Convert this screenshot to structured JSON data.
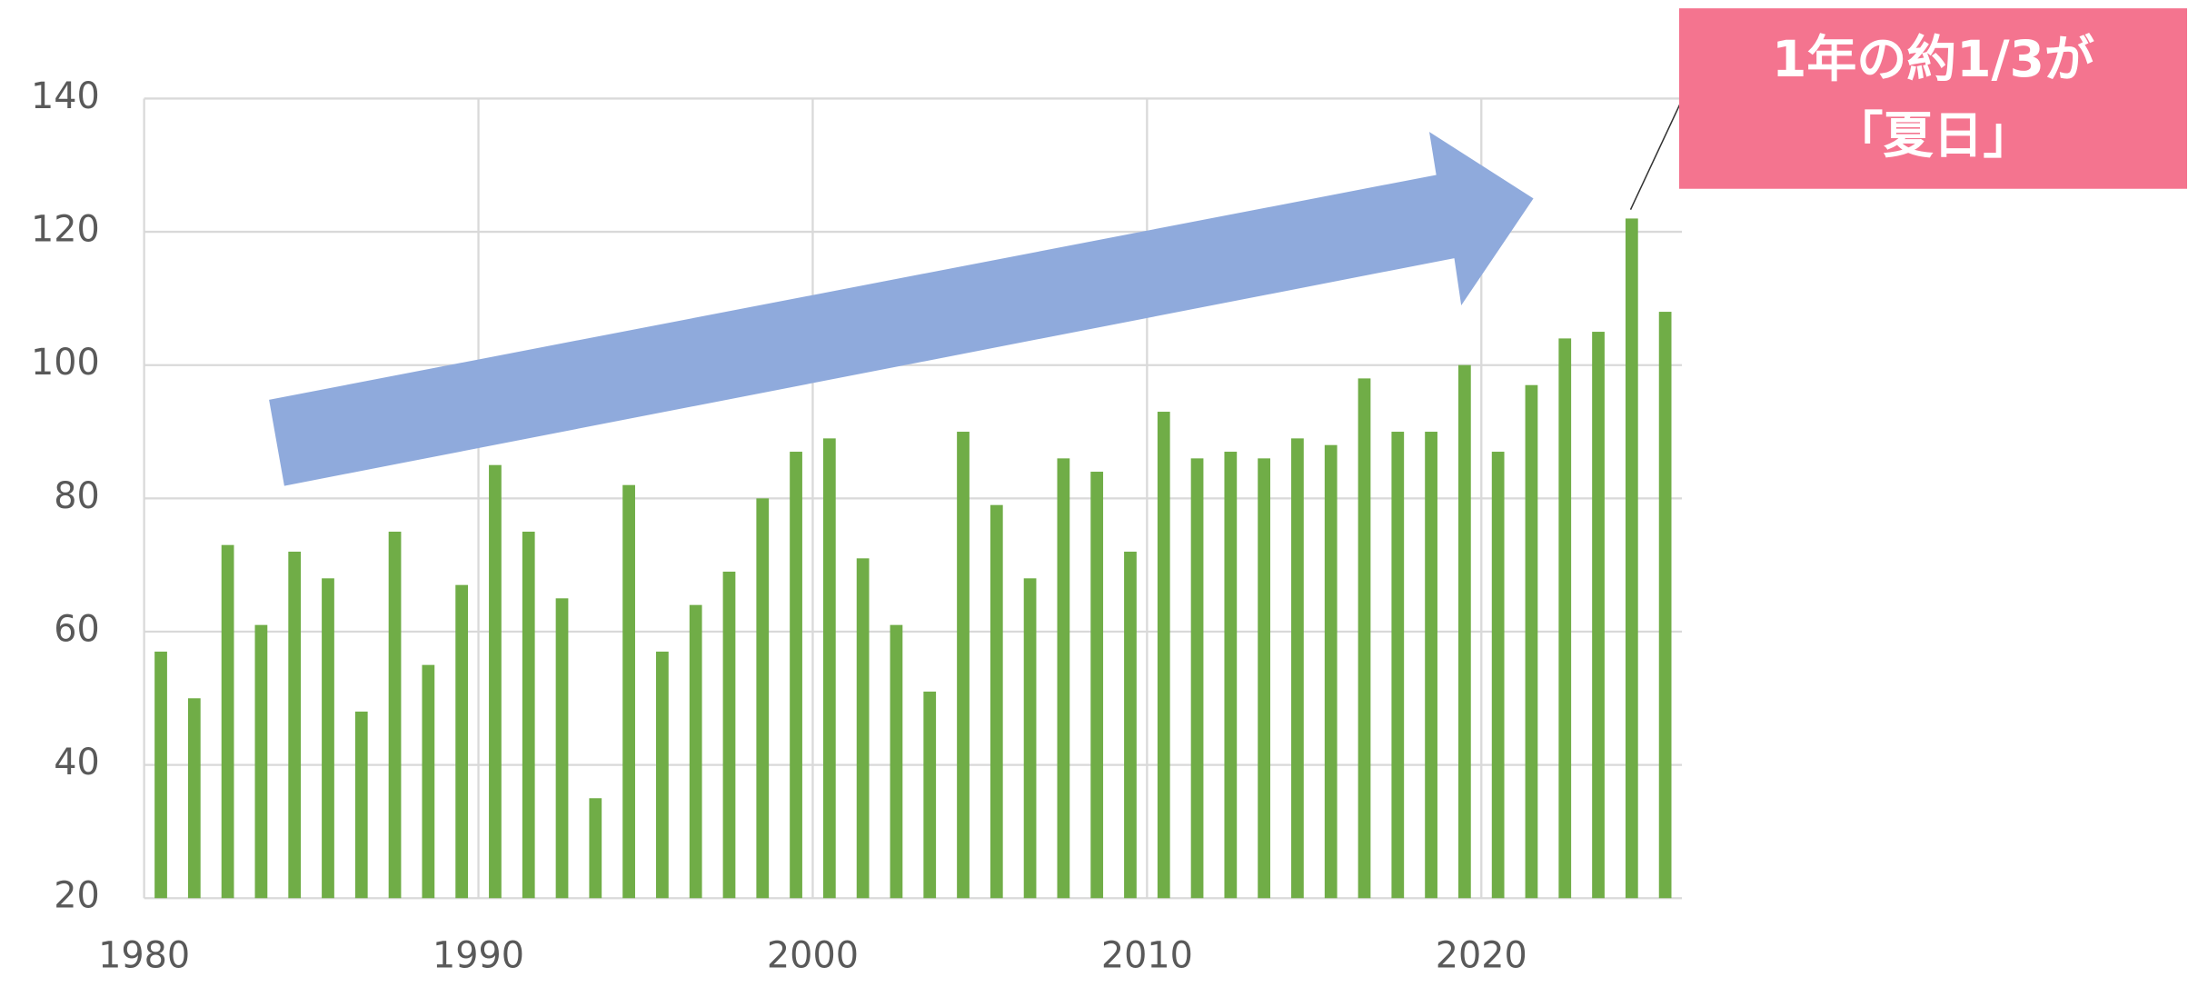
{
  "chart_data": {
    "type": "bar",
    "x": [
      1980,
      1981,
      1982,
      1983,
      1984,
      1985,
      1986,
      1987,
      1988,
      1989,
      1990,
      1991,
      1992,
      1993,
      1994,
      1995,
      1996,
      1997,
      1998,
      1999,
      2000,
      2001,
      2002,
      2003,
      2004,
      2005,
      2006,
      2007,
      2008,
      2009,
      2010,
      2011,
      2012,
      2013,
      2014,
      2015,
      2016,
      2017,
      2018,
      2019,
      2020,
      2021,
      2022,
      2023,
      2024,
      2025
    ],
    "values": [
      57,
      50,
      73,
      61,
      72,
      68,
      48,
      75,
      55,
      67,
      85,
      75,
      65,
      35,
      82,
      57,
      64,
      69,
      80,
      87,
      89,
      71,
      61,
      51,
      90,
      79,
      68,
      86,
      84,
      72,
      93,
      86,
      87,
      86,
      89,
      88,
      98,
      90,
      90,
      100,
      87,
      97,
      104,
      105,
      122,
      108
    ],
    "color": "#70ad47",
    "xlim": [
      1980,
      2026
    ],
    "xticks": [
      1980,
      1990,
      2000,
      2010,
      2020
    ],
    "ylim": [
      20,
      140
    ],
    "yticks": [
      20,
      40,
      60,
      80,
      100,
      120,
      140
    ],
    "grid": true,
    "annotation": [
      "1年の約1/3が",
      "「夏日」"
    ]
  }
}
